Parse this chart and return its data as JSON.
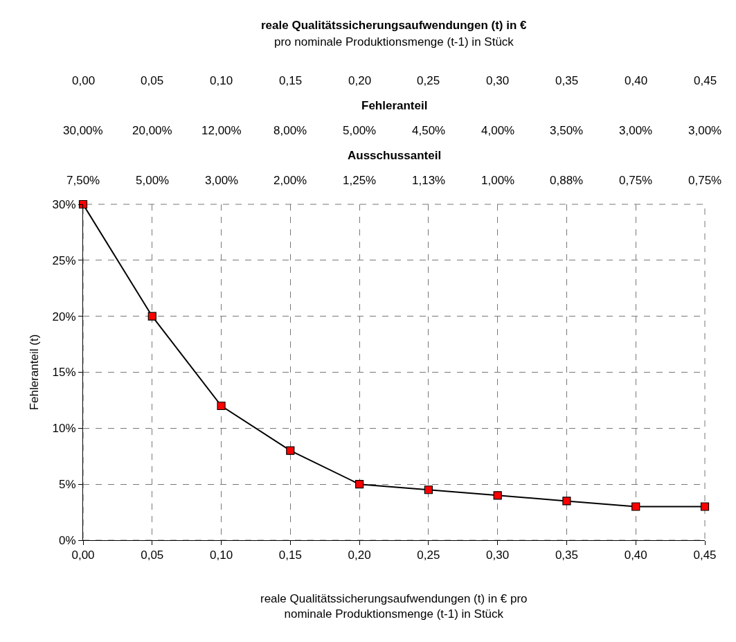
{
  "chart_data": {
    "type": "line",
    "title": "reale Qualitätssicherungsaufwendungen (t) in €\npro nominale Produktionsmenge (t-1) in Stück",
    "xlabel": "reale Qualitätssicherungsaufwendungen (t) in € pro\nnominale Produktionsmenge (t-1) in Stück",
    "ylabel": "Fehleranteil (t)",
    "x": [
      0,
      0.05,
      0.1,
      0.15,
      0.2,
      0.25,
      0.3,
      0.35,
      0.4,
      0.45
    ],
    "series": [
      {
        "color": "#000000",
        "colors": [
          "#ff0000",
          "#ff0000",
          "#ff0000",
          "#ff0000",
          "#ff0000",
          "#ff0000",
          "#ff0000",
          "#ff0000",
          "#ff0000",
          "#ff0000"
        ],
        "values": [
          30,
          20,
          12,
          8,
          5,
          4.5,
          4,
          3.5,
          3,
          3
        ]
      }
    ],
    "annotations": [
      "Fehleranteil",
      "30,00%",
      "20,00%",
      "12,00%",
      "8,00%",
      "5,00%",
      "4,50%",
      "4,00%",
      "3,50%",
      "3,00%",
      "3,00%",
      "Ausschussanteil",
      "7,50%",
      "5,00%",
      "3,00%",
      "2,00%",
      "1,25%",
      "1,13%",
      "1,00%",
      "0,88%",
      "0,75%",
      "0,75%"
    ],
    "xlim": [
      0,
      0.45
    ],
    "xticks": [
      {
        "value": 0,
        "label": "0,00"
      },
      {
        "value": 0.05,
        "label": "0,05"
      },
      {
        "value": 0.1,
        "label": "0,10"
      },
      {
        "value": 0.15,
        "label": "0,15"
      },
      {
        "value": 0.2,
        "label": "0,20"
      },
      {
        "value": 0.25,
        "label": "0,25"
      },
      {
        "value": 0.3,
        "label": "0,30"
      },
      {
        "value": 0.35,
        "label": "0,35"
      },
      {
        "value": 0.4,
        "label": "0,40"
      },
      {
        "value": 0.45,
        "label": "0,45"
      }
    ],
    "ylim": [
      0,
      30
    ],
    "yticks": [
      {
        "value": 0,
        "label": "0%"
      },
      {
        "value": 5,
        "label": "5%"
      },
      {
        "value": 10,
        "label": "10%"
      },
      {
        "value": 15,
        "label": "15%"
      },
      {
        "value": 20,
        "label": "20%"
      },
      {
        "value": 25,
        "label": "25%"
      },
      {
        "value": 30,
        "label": "30%"
      }
    ],
    "grid": true,
    "marker": "square",
    "line_style": "solid"
  }
}
